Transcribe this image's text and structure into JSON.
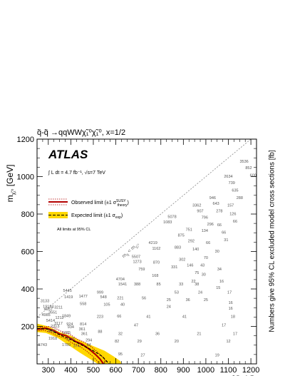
{
  "chart_data": {
    "type": "scatter",
    "title": "q̃-q̃ →qqWWχ̃₁⁰χ̃₁⁰, x=1/2",
    "xlabel": "m",
    "xlabel_sub": "q̃",
    "xlabel_unit": "[GeV]",
    "ylabel": "m",
    "ylabel_sub": "χ̃₁⁰",
    "ylabel_unit": "[GeV]",
    "zlabel": "Numbers give 95% CL excluded model cross sections [fb]",
    "xlim": [
      250,
      1225
    ],
    "ylim": [
      0,
      1200
    ],
    "xticks": [
      300,
      400,
      500,
      600,
      700,
      800,
      900,
      1000,
      1100,
      1200
    ],
    "yticks": [
      200,
      400,
      600,
      800,
      1000,
      1200
    ],
    "experiment": "ATLAS",
    "lumi": "∫ L dt = 4.7 fb⁻¹, √s=7 TeV",
    "legend": {
      "observed": "Observed limit (±1 σ",
      "observed_sup": "SUSY",
      "observed_sub": "theory",
      "observed_end": ")",
      "expected": "Expected limit (±1 σ",
      "expected_sub": "exp",
      "expected_end": ")",
      "note": "All limits at 95% CL"
    },
    "diagonal_label": "m",
    "diagonal_sub1": "q̃",
    "diagonal_mid": " < m",
    "diagonal_sub2": "χ̃₁⁰",
    "grid": false,
    "colors": {
      "observed": "#b40000",
      "expected": "#000000",
      "band": "#ffd700",
      "numbers": "#555555",
      "diagonal": "#888888"
    },
    "points": [
      {
        "x": 1170,
        "y": 1075,
        "label": "3536"
      },
      {
        "x": 1190,
        "y": 1040,
        "label": "852"
      },
      {
        "x": 1210,
        "y": 1000,
        "label": "600"
      },
      {
        "x": 1100,
        "y": 995,
        "label": "2634"
      },
      {
        "x": 1115,
        "y": 960,
        "label": "739"
      },
      {
        "x": 1130,
        "y": 920,
        "label": "635"
      },
      {
        "x": 1150,
        "y": 880,
        "label": "288"
      },
      {
        "x": 1030,
        "y": 880,
        "label": "946"
      },
      {
        "x": 1045,
        "y": 850,
        "label": "643"
      },
      {
        "x": 1060,
        "y": 810,
        "label": "278"
      },
      {
        "x": 1110,
        "y": 840,
        "label": "157"
      },
      {
        "x": 1120,
        "y": 795,
        "label": "126"
      },
      {
        "x": 1130,
        "y": 755,
        "label": "66"
      },
      {
        "x": 960,
        "y": 840,
        "label": "3362"
      },
      {
        "x": 975,
        "y": 810,
        "label": "907"
      },
      {
        "x": 995,
        "y": 775,
        "label": "796"
      },
      {
        "x": 1020,
        "y": 740,
        "label": "296"
      },
      {
        "x": 1060,
        "y": 735,
        "label": "66"
      },
      {
        "x": 1080,
        "y": 695,
        "label": "66"
      },
      {
        "x": 1090,
        "y": 655,
        "label": "31"
      },
      {
        "x": 850,
        "y": 780,
        "label": "5078"
      },
      {
        "x": 925,
        "y": 710,
        "label": "751"
      },
      {
        "x": 995,
        "y": 705,
        "label": "134"
      },
      {
        "x": 830,
        "y": 750,
        "label": "1083"
      },
      {
        "x": 890,
        "y": 680,
        "label": "875"
      },
      {
        "x": 935,
        "y": 650,
        "label": "292"
      },
      {
        "x": 1010,
        "y": 640,
        "label": "66"
      },
      {
        "x": 1050,
        "y": 595,
        "label": "30"
      },
      {
        "x": 765,
        "y": 640,
        "label": "4219"
      },
      {
        "x": 875,
        "y": 615,
        "label": "883"
      },
      {
        "x": 955,
        "y": 605,
        "label": "140"
      },
      {
        "x": 1000,
        "y": 560,
        "label": "70"
      },
      {
        "x": 1060,
        "y": 500,
        "label": "34"
      },
      {
        "x": 780,
        "y": 610,
        "label": "1162"
      },
      {
        "x": 895,
        "y": 550,
        "label": "302"
      },
      {
        "x": 690,
        "y": 565,
        "label": "5507"
      },
      {
        "x": 695,
        "y": 540,
        "label": "1273"
      },
      {
        "x": 780,
        "y": 535,
        "label": "870"
      },
      {
        "x": 860,
        "y": 510,
        "label": "331"
      },
      {
        "x": 930,
        "y": 520,
        "label": "146"
      },
      {
        "x": 985,
        "y": 520,
        "label": "43"
      },
      {
        "x": 960,
        "y": 480,
        "label": "75"
      },
      {
        "x": 990,
        "y": 470,
        "label": "30"
      },
      {
        "x": 715,
        "y": 500,
        "label": "759"
      },
      {
        "x": 775,
        "y": 465,
        "label": "168"
      },
      {
        "x": 945,
        "y": 435,
        "label": "22"
      },
      {
        "x": 1070,
        "y": 435,
        "label": "16"
      },
      {
        "x": 620,
        "y": 445,
        "label": "4704"
      },
      {
        "x": 630,
        "y": 420,
        "label": "1541"
      },
      {
        "x": 695,
        "y": 420,
        "label": "388"
      },
      {
        "x": 790,
        "y": 420,
        "label": "85"
      },
      {
        "x": 890,
        "y": 420,
        "label": "33"
      },
      {
        "x": 960,
        "y": 420,
        "label": "38"
      },
      {
        "x": 1055,
        "y": 400,
        "label": "15"
      },
      {
        "x": 870,
        "y": 375,
        "label": "53"
      },
      {
        "x": 975,
        "y": 375,
        "label": "24"
      },
      {
        "x": 1105,
        "y": 375,
        "label": "17"
      },
      {
        "x": 385,
        "y": 385,
        "label": "5445"
      },
      {
        "x": 455,
        "y": 355,
        "label": "1477"
      },
      {
        "x": 390,
        "y": 350,
        "label": "1419"
      },
      {
        "x": 530,
        "y": 375,
        "label": "999"
      },
      {
        "x": 545,
        "y": 350,
        "label": "548"
      },
      {
        "x": 620,
        "y": 345,
        "label": "221"
      },
      {
        "x": 725,
        "y": 345,
        "label": "56"
      },
      {
        "x": 835,
        "y": 335,
        "label": "25"
      },
      {
        "x": 920,
        "y": 335,
        "label": "36"
      },
      {
        "x": 1000,
        "y": 335,
        "label": "25"
      },
      {
        "x": 1110,
        "y": 320,
        "label": "16"
      },
      {
        "x": 455,
        "y": 315,
        "label": "558"
      },
      {
        "x": 560,
        "y": 310,
        "label": "105"
      },
      {
        "x": 630,
        "y": 310,
        "label": "40"
      },
      {
        "x": 835,
        "y": 300,
        "label": "24"
      },
      {
        "x": 1110,
        "y": 290,
        "label": "16"
      },
      {
        "x": 285,
        "y": 330,
        "label": "3133"
      },
      {
        "x": 300,
        "y": 300,
        "label": "19184"
      },
      {
        "x": 345,
        "y": 295,
        "label": "3211"
      },
      {
        "x": 300,
        "y": 285,
        "label": "4957"
      },
      {
        "x": 320,
        "y": 268,
        "label": "3551"
      },
      {
        "x": 290,
        "y": 255,
        "label": "4985"
      },
      {
        "x": 350,
        "y": 240,
        "label": "1212"
      },
      {
        "x": 380,
        "y": 250,
        "label": "1849"
      },
      {
        "x": 530,
        "y": 245,
        "label": "223"
      },
      {
        "x": 615,
        "y": 248,
        "label": "66"
      },
      {
        "x": 745,
        "y": 245,
        "label": "41"
      },
      {
        "x": 905,
        "y": 245,
        "label": "41"
      },
      {
        "x": 1120,
        "y": 245,
        "label": "18"
      },
      {
        "x": 310,
        "y": 225,
        "label": "5414"
      },
      {
        "x": 345,
        "y": 210,
        "label": "3117"
      },
      {
        "x": 395,
        "y": 205,
        "label": "924"
      },
      {
        "x": 455,
        "y": 205,
        "label": "814"
      },
      {
        "x": 330,
        "y": 195,
        "label": "2313"
      },
      {
        "x": 400,
        "y": 190,
        "label": "934"
      },
      {
        "x": 450,
        "y": 180,
        "label": "361"
      },
      {
        "x": 690,
        "y": 200,
        "label": "47"
      },
      {
        "x": 1080,
        "y": 200,
        "label": "17"
      },
      {
        "x": 315,
        "y": 170,
        "label": "3082"
      },
      {
        "x": 380,
        "y": 160,
        "label": "1285"
      },
      {
        "x": 460,
        "y": 155,
        "label": "361"
      },
      {
        "x": 530,
        "y": 165,
        "label": "88"
      },
      {
        "x": 620,
        "y": 155,
        "label": "32"
      },
      {
        "x": 785,
        "y": 155,
        "label": "36"
      },
      {
        "x": 970,
        "y": 155,
        "label": "21"
      },
      {
        "x": 1130,
        "y": 155,
        "label": "17"
      },
      {
        "x": 320,
        "y": 130,
        "label": "1918"
      },
      {
        "x": 400,
        "y": 125,
        "label": "1175"
      },
      {
        "x": 480,
        "y": 120,
        "label": "294"
      },
      {
        "x": 605,
        "y": 115,
        "label": "82"
      },
      {
        "x": 705,
        "y": 115,
        "label": "29"
      },
      {
        "x": 870,
        "y": 115,
        "label": "20"
      },
      {
        "x": 1100,
        "y": 115,
        "label": "12"
      },
      {
        "x": 275,
        "y": 95,
        "label": "5743"
      },
      {
        "x": 380,
        "y": 95,
        "label": "1789"
      },
      {
        "x": 425,
        "y": 90,
        "label": "374"
      },
      {
        "x": 480,
        "y": 95,
        "label": "84"
      },
      {
        "x": 720,
        "y": 40,
        "label": "27"
      },
      {
        "x": 1050,
        "y": 40,
        "label": "19"
      },
      {
        "x": 620,
        "y": 45,
        "label": "95"
      }
    ]
  }
}
